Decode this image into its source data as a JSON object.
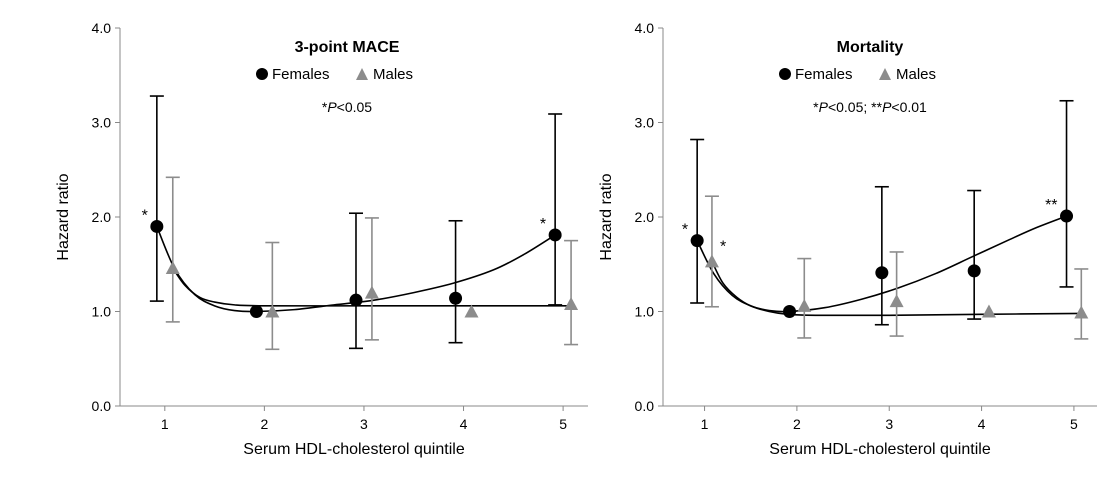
{
  "chart_data": [
    {
      "type": "scatter",
      "title": "3-point MACE",
      "note_parts": [
        "*",
        "P",
        "<0.05"
      ],
      "xlabel": "Serum HDL-cholesterol quintile",
      "ylabel": "Hazard ratio",
      "x_ticks": [
        "1",
        "2",
        "3",
        "4",
        "5"
      ],
      "y_ticks": [
        "0.0",
        "1.0",
        "2.0",
        "3.0",
        "4.0"
      ],
      "xlim": [
        0.55,
        5.25
      ],
      "ylim": [
        0,
        4
      ],
      "legend_position": "top-center",
      "series": [
        {
          "name": "Females",
          "color": "#000000",
          "marker": "circle",
          "x": [
            0.92,
            1.92,
            2.92,
            3.92,
            4.92
          ],
          "y": [
            1.9,
            1.0,
            1.12,
            1.14,
            1.81
          ],
          "y_lower": [
            1.11,
            1.0,
            0.61,
            0.67,
            1.07
          ],
          "y_upper": [
            3.28,
            1.0,
            2.04,
            1.96,
            3.09
          ],
          "significance": [
            "*",
            "",
            "",
            "",
            "*"
          ],
          "fit": [
            [
              0.92,
              1.9
            ],
            [
              1.1,
              1.45
            ],
            [
              1.3,
              1.18
            ],
            [
              1.5,
              1.06
            ],
            [
              1.7,
              1.01
            ],
            [
              1.92,
              1.0
            ],
            [
              2.3,
              1.02
            ],
            [
              2.7,
              1.07
            ],
            [
              3.1,
              1.12
            ],
            [
              3.5,
              1.2
            ],
            [
              3.9,
              1.3
            ],
            [
              4.3,
              1.44
            ],
            [
              4.6,
              1.6
            ],
            [
              4.92,
              1.81
            ]
          ]
        },
        {
          "name": "Males",
          "color": "#8c8c8c",
          "marker": "triangle",
          "x": [
            1.08,
            2.08,
            3.08,
            4.08,
            5.08
          ],
          "y": [
            1.46,
            1.0,
            1.2,
            1.0,
            1.08
          ],
          "y_lower": [
            0.89,
            0.6,
            0.7,
            1.0,
            0.65
          ],
          "y_upper": [
            2.42,
            1.73,
            1.99,
            1.0,
            1.75
          ],
          "significance": [
            "",
            "",
            "",
            "",
            ""
          ],
          "fit": [
            [
              1.08,
              1.46
            ],
            [
              1.2,
              1.28
            ],
            [
              1.35,
              1.15
            ],
            [
              1.5,
              1.1
            ],
            [
              1.7,
              1.07
            ],
            [
              2.0,
              1.06
            ],
            [
              3.0,
              1.06
            ],
            [
              4.0,
              1.06
            ],
            [
              5.08,
              1.06
            ]
          ]
        }
      ]
    },
    {
      "type": "scatter",
      "title": "Mortality",
      "note_parts": [
        "*",
        "P",
        "<0.05; **",
        "P",
        "<0.01"
      ],
      "xlabel": "Serum HDL-cholesterol quintile",
      "ylabel": "Hazard ratio",
      "x_ticks": [
        "1",
        "2",
        "3",
        "4",
        "5"
      ],
      "y_ticks": [
        "0.0",
        "1.0",
        "2.0",
        "3.0",
        "4.0"
      ],
      "xlim": [
        0.55,
        5.25
      ],
      "ylim": [
        0,
        4
      ],
      "legend_position": "top-center",
      "series": [
        {
          "name": "Females",
          "color": "#000000",
          "marker": "circle",
          "x": [
            0.92,
            1.92,
            2.92,
            3.92,
            4.92
          ],
          "y": [
            1.75,
            1.0,
            1.41,
            1.43,
            2.01
          ],
          "y_lower": [
            1.09,
            1.0,
            0.86,
            0.92,
            1.26
          ],
          "y_upper": [
            2.82,
            1.0,
            2.32,
            2.28,
            3.23
          ],
          "significance": [
            "*",
            "",
            "",
            "",
            "**"
          ],
          "fit": [
            [
              0.92,
              1.75
            ],
            [
              1.1,
              1.4
            ],
            [
              1.3,
              1.17
            ],
            [
              1.5,
              1.06
            ],
            [
              1.7,
              1.01
            ],
            [
              1.92,
              1.0
            ],
            [
              2.3,
              1.04
            ],
            [
              2.7,
              1.13
            ],
            [
              3.1,
              1.25
            ],
            [
              3.5,
              1.4
            ],
            [
              3.9,
              1.58
            ],
            [
              4.3,
              1.76
            ],
            [
              4.6,
              1.89
            ],
            [
              4.92,
              2.01
            ]
          ]
        },
        {
          "name": "Males",
          "color": "#8c8c8c",
          "marker": "triangle",
          "x": [
            1.08,
            2.08,
            3.08,
            4.08,
            5.08
          ],
          "y": [
            1.53,
            1.06,
            1.11,
            1.0,
            0.99
          ],
          "y_lower": [
            1.05,
            0.72,
            0.74,
            1.0,
            0.71
          ],
          "y_upper": [
            2.22,
            1.56,
            1.63,
            1.0,
            1.45
          ],
          "significance": [
            "*",
            "",
            "",
            "",
            ""
          ],
          "fit": [
            [
              1.08,
              1.53
            ],
            [
              1.2,
              1.3
            ],
            [
              1.35,
              1.15
            ],
            [
              1.5,
              1.06
            ],
            [
              1.7,
              1.0
            ],
            [
              1.9,
              0.97
            ],
            [
              2.2,
              0.96
            ],
            [
              3.0,
              0.96
            ],
            [
              4.0,
              0.97
            ],
            [
              5.08,
              0.98
            ]
          ]
        }
      ]
    }
  ]
}
